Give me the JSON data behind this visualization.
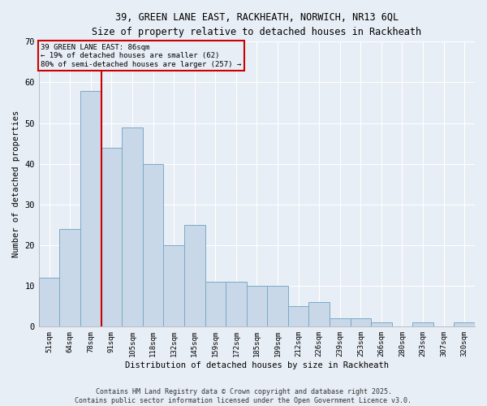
{
  "title_line1": "39, GREEN LANE EAST, RACKHEATH, NORWICH, NR13 6QL",
  "title_line2": "Size of property relative to detached houses in Rackheath",
  "xlabel": "Distribution of detached houses by size in Rackheath",
  "ylabel": "Number of detached properties",
  "categories": [
    "51sqm",
    "64sqm",
    "78sqm",
    "91sqm",
    "105sqm",
    "118sqm",
    "132sqm",
    "145sqm",
    "159sqm",
    "172sqm",
    "185sqm",
    "199sqm",
    "212sqm",
    "226sqm",
    "239sqm",
    "253sqm",
    "266sqm",
    "280sqm",
    "293sqm",
    "307sqm",
    "320sqm"
  ],
  "values": [
    12,
    24,
    58,
    44,
    49,
    40,
    20,
    25,
    11,
    11,
    10,
    10,
    5,
    6,
    2,
    2,
    1,
    0,
    1,
    0,
    1
  ],
  "bar_color": "#c8d8e8",
  "bar_edge_color": "#7aaac8",
  "vline_x": 2.5,
  "vline_color": "#cc0000",
  "annotation_text": "39 GREEN LANE EAST: 86sqm\n← 19% of detached houses are smaller (62)\n80% of semi-detached houses are larger (257) →",
  "annotation_box_color": "#cc0000",
  "ylim": [
    0,
    70
  ],
  "yticks": [
    0,
    10,
    20,
    30,
    40,
    50,
    60,
    70
  ],
  "background_color": "#e8eef5",
  "grid_color": "#ffffff",
  "footer": "Contains HM Land Registry data © Crown copyright and database right 2025.\nContains public sector information licensed under the Open Government Licence v3.0."
}
